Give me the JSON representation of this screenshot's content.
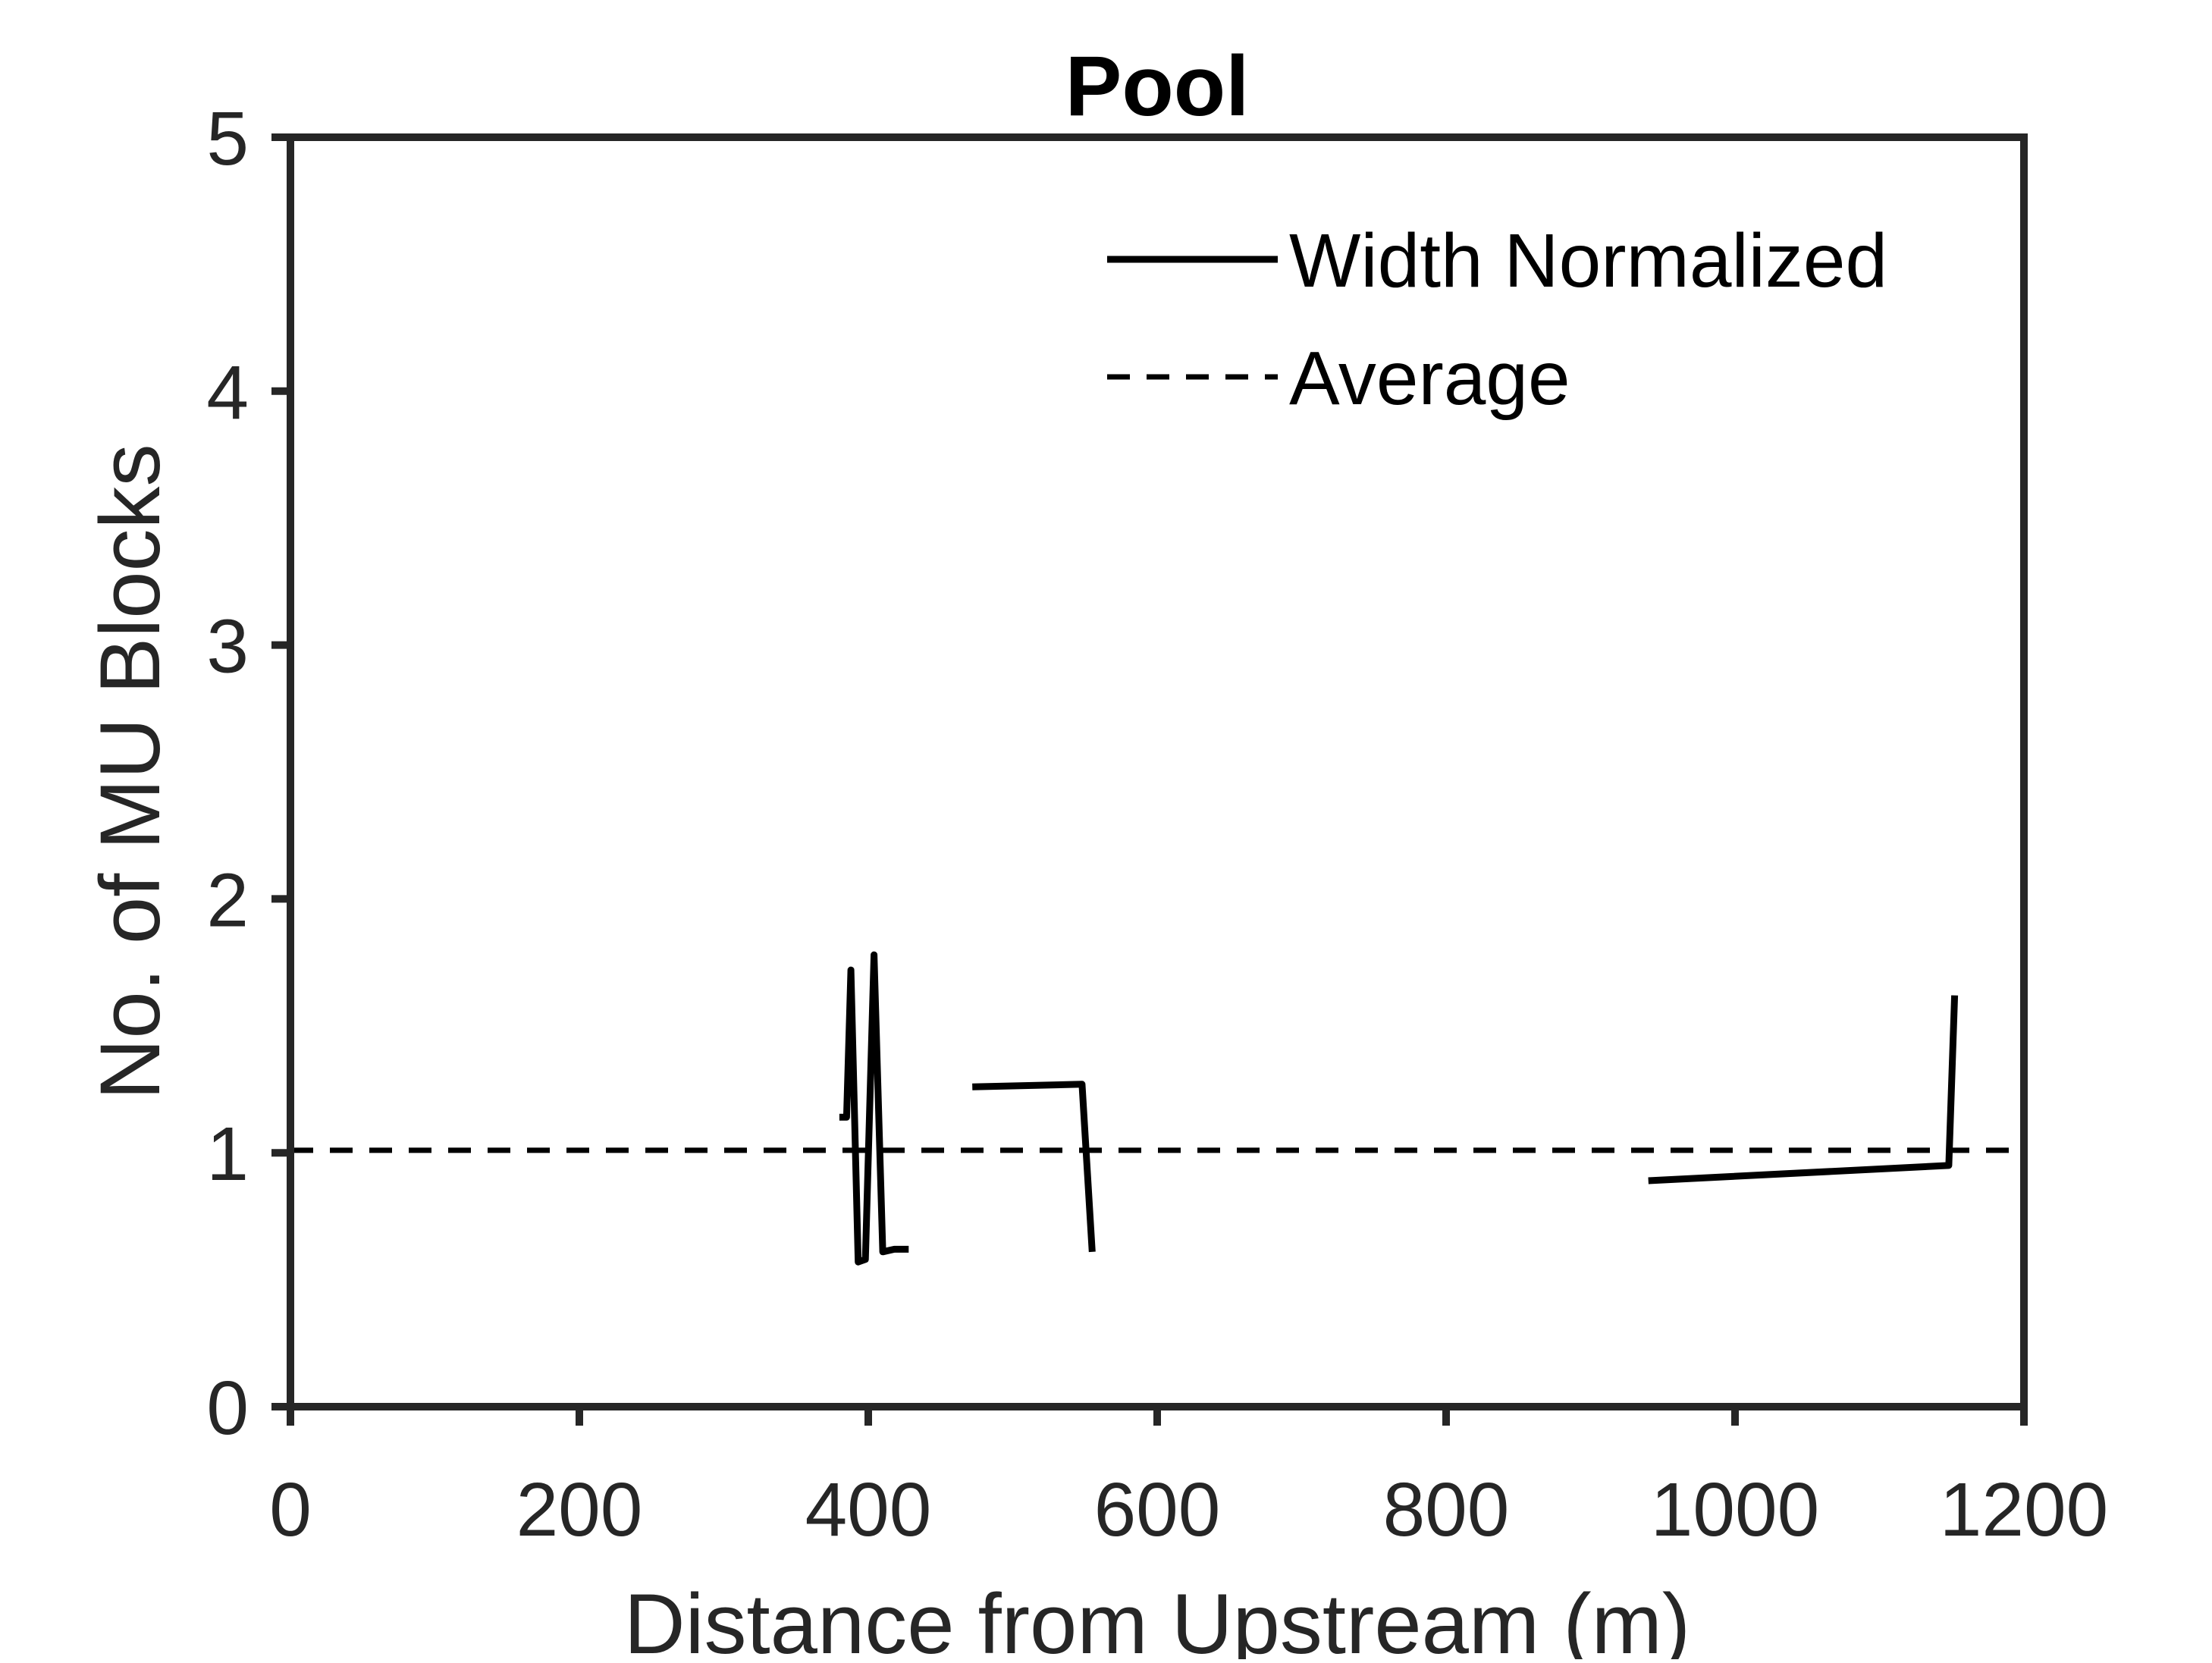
{
  "chart_data": {
    "type": "line",
    "title": "Pool",
    "xlabel": "Distance from Upstream (m)",
    "ylabel": "No. of MU Blocks",
    "xlim": [
      0,
      1200
    ],
    "ylim": [
      0,
      5
    ],
    "xticks": [
      0,
      200,
      400,
      600,
      800,
      1000,
      1200
    ],
    "yticks": [
      0,
      1,
      2,
      3,
      4,
      5
    ],
    "grid": false,
    "legend_position": "top-right",
    "series": [
      {
        "name": "Width Normalized",
        "style": "solid",
        "color": "#000000",
        "segments": [
          [
            [
              380,
              1.14
            ],
            [
              385,
              1.14
            ],
            [
              388,
              1.72
            ],
            [
              393,
              0.57
            ],
            [
              398,
              0.58
            ],
            [
              404,
              1.78
            ],
            [
              410,
              0.61
            ],
            [
              418,
              0.62
            ],
            [
              428,
              0.62
            ]
          ],
          [
            [
              472,
              1.26
            ],
            [
              548,
              1.27
            ],
            [
              555,
              0.61
            ]
          ],
          [
            [
              940,
              0.89
            ],
            [
              1148,
              0.95
            ],
            [
              1152,
              1.62
            ]
          ]
        ]
      },
      {
        "name": "Average",
        "style": "dashed",
        "color": "#000000",
        "segments": [
          [
            [
              0,
              1.01
            ],
            [
              1200,
              1.01
            ]
          ]
        ]
      }
    ]
  }
}
